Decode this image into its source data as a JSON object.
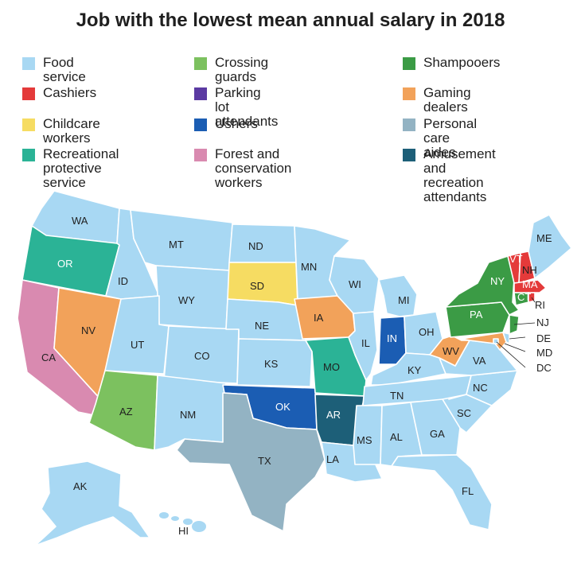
{
  "title": "Job with the lowest mean annual salary in 2018",
  "colors": {
    "food": "#a8d8f3",
    "cashiers": "#e43a3a",
    "childcare": "#f6dc62",
    "recreational": "#2bb396",
    "crossing": "#7cc15f",
    "parking": "#5b3aa2",
    "ushers": "#1b5db3",
    "forest": "#d98ab0",
    "shampooers": "#3b9b45",
    "gaming": "#f2a25a",
    "personal": "#93b3c3",
    "amusement": "#1d5f78"
  },
  "legend": [
    {
      "key": "food",
      "label": "Food service"
    },
    {
      "key": "crossing",
      "label": "Crossing guards"
    },
    {
      "key": "shampooers",
      "label": "Shampooers"
    },
    {
      "key": "cashiers",
      "label": "Cashiers"
    },
    {
      "key": "parking",
      "label": "Parking lot attendants"
    },
    {
      "key": "gaming",
      "label": "Gaming dealers"
    },
    {
      "key": "childcare",
      "label": "Childcare workers"
    },
    {
      "key": "ushers",
      "label": "Ushers"
    },
    {
      "key": "personal",
      "label": "Personal care aides"
    },
    {
      "key": "recreational",
      "label": "Recreational\nprotective service"
    },
    {
      "key": "forest",
      "label": "Forest and conservation\nworkers"
    },
    {
      "key": "amusement",
      "label": "Amusement and\nrecreation attendants"
    }
  ],
  "states": {
    "WA": "WA",
    "OR": "OR",
    "CA": "CA",
    "NV": "NV",
    "ID": "ID",
    "MT": "MT",
    "WY": "WY",
    "UT": "UT",
    "AZ": "AZ",
    "CO": "CO",
    "NM": "NM",
    "ND": "ND",
    "SD": "SD",
    "NE": "NE",
    "KS": "KS",
    "OK": "OK",
    "TX": "TX",
    "MN": "MN",
    "IA": "IA",
    "MO": "MO",
    "AR": "AR",
    "LA": "LA",
    "WI": "WI",
    "IL": "IL",
    "MI": "MI",
    "IN": "IN",
    "OH": "OH",
    "KY": "KY",
    "TN": "TN",
    "MS": "MS",
    "AL": "AL",
    "GA": "GA",
    "FL": "FL",
    "SC": "SC",
    "NC": "NC",
    "VA": "VA",
    "WV": "WV",
    "PA": "PA",
    "NY": "NY",
    "VT": "VT",
    "NH": "NH",
    "ME": "ME",
    "MA": "MA",
    "CT": "CT",
    "RI": "RI",
    "NJ": "NJ",
    "DE": "DE",
    "MD": "MD",
    "DC": "DC",
    "AK": "AK",
    "HI": "HI"
  }
}
